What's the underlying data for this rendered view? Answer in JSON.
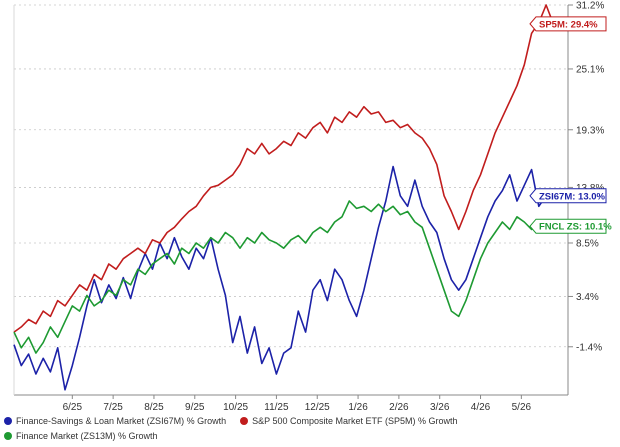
{
  "chart_data": {
    "type": "line",
    "y_axis_side": "right",
    "grid": "horizontal dashed",
    "ylim": [
      -6,
      31.2
    ],
    "y_ticks": [
      "31.2%",
      "25.1%",
      "19.3%",
      "13.8%",
      "8.5%",
      "3.4%",
      "-1.4%"
    ],
    "y_tick_values": [
      31.2,
      25.1,
      19.3,
      13.8,
      8.5,
      3.4,
      -1.4
    ],
    "x_ticks": [
      "6/25",
      "7/25",
      "8/25",
      "9/25",
      "10/25",
      "11/25",
      "12/25",
      "1/26",
      "2/26",
      "3/26",
      "4/26",
      "5/26"
    ],
    "x_tick_index": [
      4,
      6.8,
      9.6,
      12.4,
      15.2,
      18,
      20.8,
      23.6,
      26.4,
      29.2,
      32,
      34.8
    ],
    "x_range": [
      0,
      38
    ],
    "legend_position": "bottom",
    "series": [
      {
        "name": "Finance-Savings & Loan Market (ZSI67M) % Growth",
        "color": "#1c22a8",
        "end_label": "ZSI67M: 13.0%",
        "points": [
          [
            0,
            -1.2
          ],
          [
            0.5,
            -3.2
          ],
          [
            1,
            -2.1
          ],
          [
            1.5,
            -4
          ],
          [
            2,
            -2.5
          ],
          [
            2.5,
            -3.8
          ],
          [
            3,
            -1.5
          ],
          [
            3.5,
            -5.5
          ],
          [
            4,
            -3.2
          ],
          [
            4.5,
            -0.5
          ],
          [
            5,
            2.5
          ],
          [
            5.5,
            5
          ],
          [
            6,
            2.8
          ],
          [
            6.5,
            4.5
          ],
          [
            7,
            3.2
          ],
          [
            7.5,
            5.2
          ],
          [
            8,
            3.2
          ],
          [
            8.5,
            5.8
          ],
          [
            9,
            7.5
          ],
          [
            9.5,
            6
          ],
          [
            10,
            8.5
          ],
          [
            10.5,
            7
          ],
          [
            11,
            9
          ],
          [
            11.5,
            7.2
          ],
          [
            12,
            6
          ],
          [
            12.5,
            8
          ],
          [
            13,
            7
          ],
          [
            13.5,
            9
          ],
          [
            14,
            6
          ],
          [
            14.5,
            3.5
          ],
          [
            15,
            -1
          ],
          [
            15.5,
            1.5
          ],
          [
            16,
            -2
          ],
          [
            16.5,
            0.5
          ],
          [
            17,
            -3
          ],
          [
            17.5,
            -1.5
          ],
          [
            18,
            -4
          ],
          [
            18.5,
            -2
          ],
          [
            19,
            -1.5
          ],
          [
            19.5,
            2
          ],
          [
            20,
            0
          ],
          [
            20.5,
            4
          ],
          [
            21,
            5
          ],
          [
            21.5,
            3
          ],
          [
            22,
            6
          ],
          [
            22.5,
            5
          ],
          [
            23,
            3
          ],
          [
            23.5,
            1.5
          ],
          [
            24,
            4
          ],
          [
            24.5,
            7
          ],
          [
            25,
            10
          ],
          [
            25.5,
            12.5
          ],
          [
            26,
            15.8
          ],
          [
            26.5,
            13
          ],
          [
            27,
            12
          ],
          [
            27.5,
            14.5
          ],
          [
            28,
            12
          ],
          [
            28.5,
            10.5
          ],
          [
            29,
            9.5
          ],
          [
            29.5,
            7
          ],
          [
            30,
            5
          ],
          [
            30.5,
            4
          ],
          [
            31,
            5
          ],
          [
            31.5,
            7
          ],
          [
            32,
            9
          ],
          [
            32.5,
            11
          ],
          [
            33,
            12.5
          ],
          [
            33.5,
            13.5
          ],
          [
            34,
            15
          ],
          [
            34.5,
            12.5
          ],
          [
            35,
            14
          ],
          [
            35.5,
            15.5
          ],
          [
            36,
            12
          ],
          [
            36.5,
            13
          ],
          [
            37,
            13
          ]
        ]
      },
      {
        "name": "S&P 500 Composite Market ETF (SP5M) % Growth",
        "color": "#c11d1d",
        "end_label": "SP5M: 29.4%",
        "points": [
          [
            0,
            0
          ],
          [
            0.5,
            0.5
          ],
          [
            1,
            1.2
          ],
          [
            1.5,
            0.8
          ],
          [
            2,
            2
          ],
          [
            2.5,
            1.5
          ],
          [
            3,
            3
          ],
          [
            3.5,
            2.5
          ],
          [
            4,
            3.5
          ],
          [
            4.5,
            4.5
          ],
          [
            5,
            4
          ],
          [
            5.5,
            5.5
          ],
          [
            6,
            5
          ],
          [
            6.5,
            6.5
          ],
          [
            7,
            6
          ],
          [
            7.5,
            7
          ],
          [
            8,
            7.5
          ],
          [
            8.5,
            8
          ],
          [
            9,
            7.5
          ],
          [
            9.5,
            8.8
          ],
          [
            10,
            8.5
          ],
          [
            10.5,
            9.5
          ],
          [
            11,
            10
          ],
          [
            11.5,
            10.8
          ],
          [
            12,
            11.5
          ],
          [
            12.5,
            12
          ],
          [
            13,
            13
          ],
          [
            13.5,
            13.8
          ],
          [
            14,
            14
          ],
          [
            14.5,
            14.5
          ],
          [
            15,
            15
          ],
          [
            15.5,
            16
          ],
          [
            16,
            17.5
          ],
          [
            16.5,
            17
          ],
          [
            17,
            18
          ],
          [
            17.5,
            17
          ],
          [
            18,
            17.5
          ],
          [
            18.5,
            18.2
          ],
          [
            19,
            17.8
          ],
          [
            19.5,
            19
          ],
          [
            20,
            18.5
          ],
          [
            20.5,
            19.5
          ],
          [
            21,
            20
          ],
          [
            21.5,
            19
          ],
          [
            22,
            20.5
          ],
          [
            22.5,
            20
          ],
          [
            23,
            21
          ],
          [
            23.5,
            20.5
          ],
          [
            24,
            21.5
          ],
          [
            24.5,
            20.8
          ],
          [
            25,
            21
          ],
          [
            25.5,
            20
          ],
          [
            26,
            20.2
          ],
          [
            26.5,
            19.5
          ],
          [
            27,
            19.8
          ],
          [
            27.5,
            19
          ],
          [
            28,
            18.5
          ],
          [
            28.5,
            17.5
          ],
          [
            29,
            16
          ],
          [
            29.5,
            13
          ],
          [
            30,
            11.5
          ],
          [
            30.5,
            9.8
          ],
          [
            31,
            11.5
          ],
          [
            31.5,
            13.5
          ],
          [
            32,
            15
          ],
          [
            32.5,
            17
          ],
          [
            33,
            19
          ],
          [
            33.5,
            20.5
          ],
          [
            34,
            22
          ],
          [
            34.5,
            23.5
          ],
          [
            35,
            25.5
          ],
          [
            35.5,
            28.5
          ],
          [
            36,
            29.5
          ],
          [
            36.5,
            31.2
          ],
          [
            37,
            29.4
          ]
        ]
      },
      {
        "name": "Finance Market (ZS13M) % Growth",
        "color": "#1e9a32",
        "end_label": "FNCL ZS: 10.1%",
        "points": [
          [
            0,
            0
          ],
          [
            0.5,
            -1.5
          ],
          [
            1,
            -0.5
          ],
          [
            1.5,
            -2
          ],
          [
            2,
            -1
          ],
          [
            2.5,
            0.5
          ],
          [
            3,
            -0.5
          ],
          [
            3.5,
            1
          ],
          [
            4,
            2.5
          ],
          [
            4.5,
            2
          ],
          [
            5,
            3.5
          ],
          [
            5.5,
            2.5
          ],
          [
            6,
            3
          ],
          [
            6.5,
            4
          ],
          [
            7,
            3.5
          ],
          [
            7.5,
            5
          ],
          [
            8,
            4.5
          ],
          [
            8.5,
            6
          ],
          [
            9,
            5.5
          ],
          [
            9.5,
            6.5
          ],
          [
            10,
            7
          ],
          [
            10.5,
            7.5
          ],
          [
            11,
            6.5
          ],
          [
            11.5,
            8
          ],
          [
            12,
            7.5
          ],
          [
            12.5,
            8.5
          ],
          [
            13,
            8
          ],
          [
            13.5,
            9
          ],
          [
            14,
            8.5
          ],
          [
            14.5,
            9.5
          ],
          [
            15,
            9
          ],
          [
            15.5,
            8
          ],
          [
            16,
            9
          ],
          [
            16.5,
            8.5
          ],
          [
            17,
            9.5
          ],
          [
            17.5,
            8.8
          ],
          [
            18,
            8.5
          ],
          [
            18.5,
            8
          ],
          [
            19,
            8.8
          ],
          [
            19.5,
            9.2
          ],
          [
            20,
            8.5
          ],
          [
            20.5,
            9.5
          ],
          [
            21,
            10
          ],
          [
            21.5,
            9.5
          ],
          [
            22,
            10.5
          ],
          [
            22.5,
            11
          ],
          [
            23,
            12.5
          ],
          [
            23.5,
            11.8
          ],
          [
            24,
            12
          ],
          [
            24.5,
            11.5
          ],
          [
            25,
            12.2
          ],
          [
            25.5,
            11.5
          ],
          [
            26,
            12
          ],
          [
            26.5,
            11.2
          ],
          [
            27,
            11.5
          ],
          [
            27.5,
            10.5
          ],
          [
            28,
            10
          ],
          [
            28.5,
            8
          ],
          [
            29,
            6
          ],
          [
            29.5,
            4
          ],
          [
            30,
            2
          ],
          [
            30.5,
            1.5
          ],
          [
            31,
            3
          ],
          [
            31.5,
            5
          ],
          [
            32,
            7
          ],
          [
            32.5,
            8.5
          ],
          [
            33,
            9.5
          ],
          [
            33.5,
            10.5
          ],
          [
            34,
            9.8
          ],
          [
            34.5,
            11
          ],
          [
            35,
            10.5
          ],
          [
            35.5,
            9.8
          ],
          [
            36,
            10.5
          ],
          [
            36.5,
            10
          ],
          [
            37,
            10.1
          ]
        ]
      }
    ]
  },
  "legend": {
    "item1": "Finance-Savings & Loan Market (ZSI67M) % Growth",
    "item2": "S&P 500 Composite Market ETF (SP5M) % Growth",
    "item3": "Finance Market (ZS13M) % Growth",
    "color1": "#1c22a8",
    "color2": "#c11d1d",
    "color3": "#1e9a32"
  }
}
